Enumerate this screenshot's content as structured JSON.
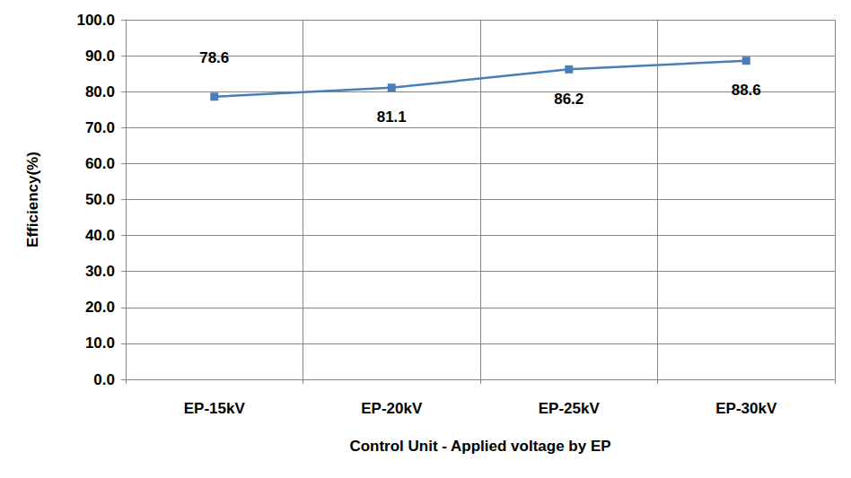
{
  "chart_data": {
    "type": "line",
    "x_label": "Control Unit - Applied voltage by EP",
    "y_label": "Efficiency(%)",
    "categories": [
      "EP-15kV",
      "EP-20kV",
      "EP-25kV",
      "EP-30kV"
    ],
    "values": [
      78.6,
      81.1,
      86.2,
      88.6
    ],
    "color": "#4a7ebb",
    "marker": "square",
    "data_labels": true,
    "grid": true,
    "ylim": [
      0,
      100
    ],
    "yticks": [
      {
        "value": 0,
        "label": "0.0"
      },
      {
        "value": 10,
        "label": "10.0"
      },
      {
        "value": 20,
        "label": "20.0"
      },
      {
        "value": 30,
        "label": "30.0"
      },
      {
        "value": 40,
        "label": "40.0"
      },
      {
        "value": 50,
        "label": "50.0"
      },
      {
        "value": 60,
        "label": "60.0"
      },
      {
        "value": 70,
        "label": "70.0"
      },
      {
        "value": 80,
        "label": "80.0"
      },
      {
        "value": 90,
        "label": "90.0"
      },
      {
        "value": 100,
        "label": "100.0"
      }
    ]
  }
}
